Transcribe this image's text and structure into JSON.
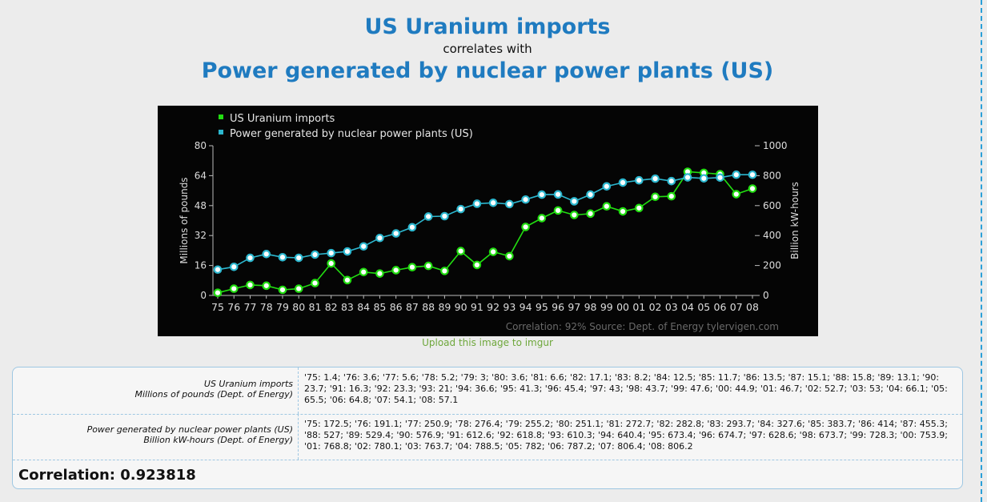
{
  "header": {
    "title_a": "US Uranium imports",
    "connector": "correlates with",
    "title_b": "Power generated by nuclear power plants (US)"
  },
  "chart_data": {
    "type": "line",
    "categories": [
      "75",
      "76",
      "77",
      "78",
      "79",
      "80",
      "81",
      "82",
      "83",
      "84",
      "85",
      "86",
      "87",
      "88",
      "89",
      "90",
      "91",
      "92",
      "93",
      "94",
      "95",
      "96",
      "97",
      "98",
      "99",
      "00",
      "01",
      "02",
      "03",
      "04",
      "05",
      "06",
      "07",
      "08"
    ],
    "series": [
      {
        "name": "US Uranium imports",
        "axis": "left",
        "color": "#22dd11",
        "values": [
          1.4,
          3.6,
          5.6,
          5.2,
          3,
          3.6,
          6.6,
          17.1,
          8.2,
          12.5,
          11.7,
          13.5,
          15.1,
          15.8,
          13.1,
          23.7,
          16.3,
          23.3,
          21,
          36.6,
          41.3,
          45.4,
          43,
          43.7,
          47.6,
          44.9,
          46.7,
          52.7,
          53,
          66.1,
          65.5,
          64.8,
          54.1,
          57.1
        ]
      },
      {
        "name": "Power generated by nuclear power plants (US)",
        "axis": "right",
        "color": "#2cb7cf",
        "values": [
          172.5,
          191.1,
          250.9,
          276.4,
          255.2,
          251.1,
          272.7,
          282.8,
          293.7,
          327.6,
          383.7,
          414,
          455.3,
          527,
          529.4,
          576.9,
          612.6,
          618.8,
          610.3,
          640.4,
          673.4,
          674.7,
          628.6,
          673.7,
          728.3,
          753.9,
          768.8,
          780.1,
          763.7,
          788.5,
          782,
          787.2,
          806.4,
          806.2
        ]
      }
    ],
    "ylabel_left": "Millions of pounds",
    "ylabel_right": "Billion kW-hours",
    "ylim_left": [
      0,
      80
    ],
    "ylim_right": [
      0,
      1000
    ],
    "yticks_left": [
      "0",
      "16",
      "32",
      "48",
      "64",
      "80"
    ],
    "yticks_right": [
      "0",
      "200",
      "400",
      "600",
      "800",
      "1000"
    ],
    "legend_position": "top-left",
    "footer": "Correlation: 92%   Source: Dept. of Energy  tylervigen.com"
  },
  "upload_link": "Upload this image to imgur",
  "table": {
    "row1": {
      "name": "US Uranium imports",
      "unit": "Millions of pounds (Dept. of Energy)",
      "values": "'75: 1.4; '76: 3.6; '77: 5.6; '78: 5.2; '79: 3; '80: 3.6; '81: 6.6; '82: 17.1; '83: 8.2; '84: 12.5; '85: 11.7; '86: 13.5; '87: 15.1; '88: 15.8; '89: 13.1; '90: 23.7; '91: 16.3; '92: 23.3; '93: 21; '94: 36.6; '95: 41.3; '96: 45.4; '97: 43; '98: 43.7; '99: 47.6; '00: 44.9; '01: 46.7; '02: 52.7; '03: 53; '04: 66.1; '05: 65.5; '06: 64.8; '07: 54.1; '08: 57.1"
    },
    "row2": {
      "name": "Power generated by nuclear power plants (US)",
      "unit": "Billion kW-hours (Dept. of Energy)",
      "values": "'75: 172.5; '76: 191.1; '77: 250.9; '78: 276.4; '79: 255.2; '80: 251.1; '81: 272.7; '82: 282.8; '83: 293.7; '84: 327.6; '85: 383.7; '86: 414; '87: 455.3; '88: 527; '89: 529.4; '90: 576.9; '91: 612.6; '92: 618.8; '93: 610.3; '94: 640.4; '95: 673.4; '96: 674.7; '97: 628.6; '98: 673.7; '99: 728.3; '00: 753.9; '01: 768.8; '02: 780.1; '03: 763.7; '04: 788.5; '05: 782; '06: 787.2; '07: 806.4; '08: 806.2"
    },
    "correlation": "Correlation: 0.923818"
  }
}
